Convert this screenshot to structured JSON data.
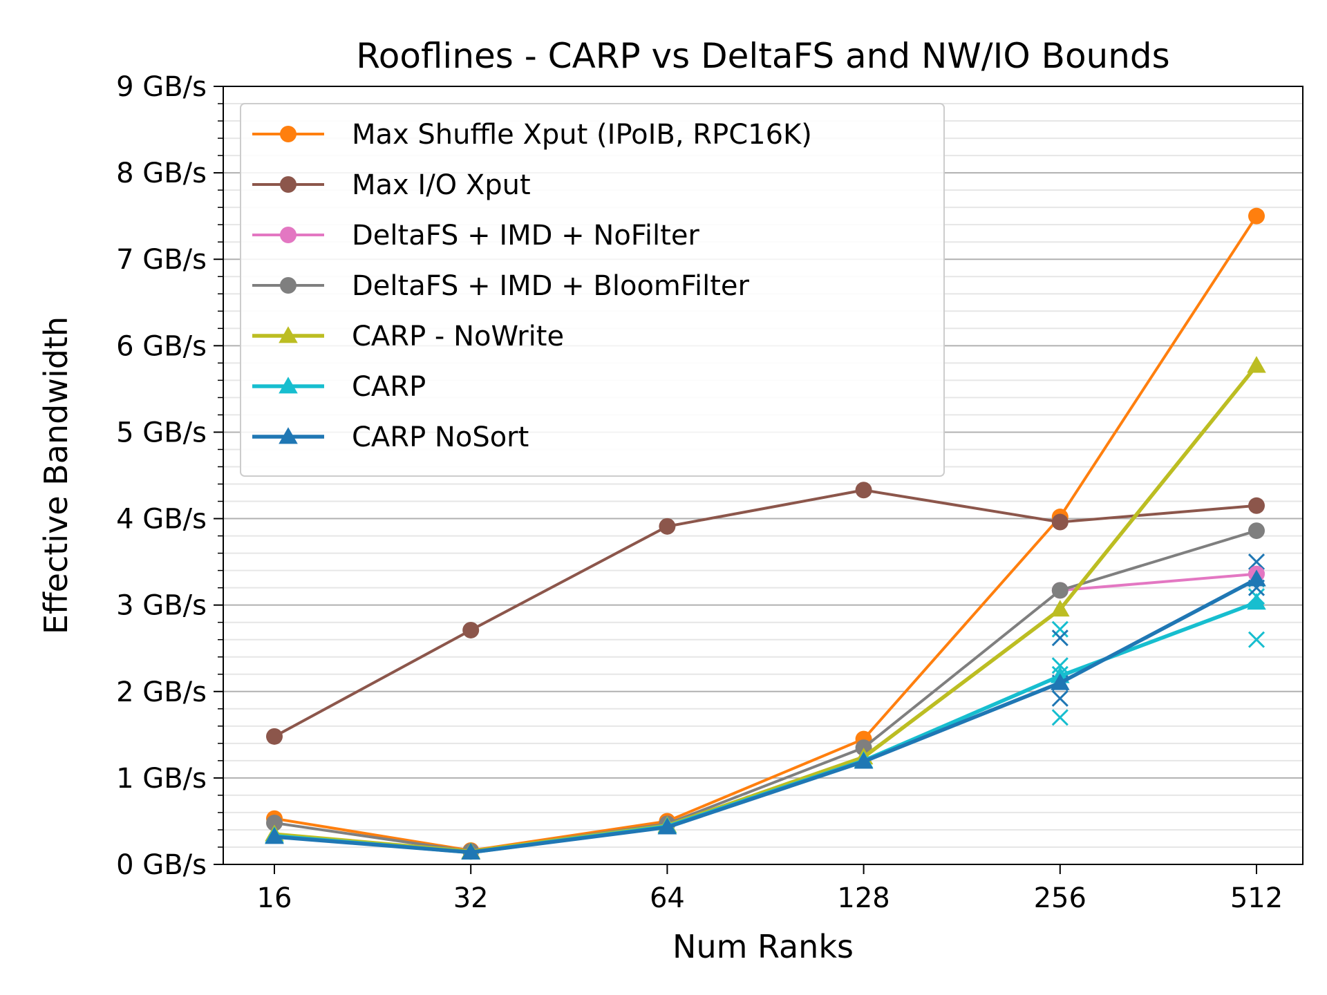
{
  "chart_data": {
    "type": "line",
    "title": "Rooflines - CARP vs DeltaFS and NW/IO Bounds",
    "xlabel": "Num Ranks",
    "ylabel": "Effective Bandwidth",
    "x_scale": "log2",
    "categories": [
      "16",
      "32",
      "64",
      "128",
      "256",
      "512"
    ],
    "y_unit": "GB/s",
    "ylim": [
      0,
      9
    ],
    "yticks": [
      0,
      1,
      2,
      3,
      4,
      5,
      6,
      7,
      8,
      9
    ],
    "ytick_labels": [
      "0 GB/s",
      "1 GB/s",
      "2 GB/s",
      "3 GB/s",
      "4 GB/s",
      "5 GB/s",
      "6 GB/s",
      "7 GB/s",
      "8 GB/s",
      "9 GB/s"
    ],
    "grid": "horizontal, major and minor",
    "legend_position": "upper-left",
    "series": [
      {
        "name": "Max Shuffle Xput (IPoIB, RPC16K)",
        "color": "#ff7f0e",
        "marker": "circle",
        "values": [
          0.53,
          0.16,
          0.5,
          1.45,
          4.02,
          7.5
        ]
      },
      {
        "name": "Max I/O Xput",
        "color": "#8c564b",
        "marker": "circle",
        "values": [
          1.48,
          2.71,
          3.91,
          4.33,
          3.96,
          4.15
        ]
      },
      {
        "name": "DeltaFS + IMD + NoFilter",
        "color": "#e377c2",
        "marker": "circle",
        "values": [
          null,
          null,
          null,
          null,
          3.17,
          3.36
        ]
      },
      {
        "name": "DeltaFS + IMD + BloomFilter",
        "color": "#7f7f7f",
        "marker": "circle",
        "values": [
          0.48,
          0.15,
          0.47,
          1.35,
          3.17,
          3.86
        ]
      },
      {
        "name": "CARP - NoWrite",
        "color": "#bcbd22",
        "marker": "triangle",
        "values": [
          0.35,
          0.15,
          0.45,
          1.24,
          2.95,
          5.77
        ]
      },
      {
        "name": "CARP",
        "color": "#17becf",
        "marker": "triangle",
        "values": [
          0.33,
          0.14,
          0.44,
          1.2,
          2.18,
          3.03
        ]
      },
      {
        "name": "CARP NoSort",
        "color": "#1f77b4",
        "marker": "triangle",
        "values": [
          0.32,
          0.14,
          0.43,
          1.19,
          2.1,
          3.3
        ]
      }
    ],
    "scatter_points": [
      {
        "name": "CARP",
        "color": "#17becf",
        "marker": "x",
        "points": [
          [
            4,
            2.72
          ],
          [
            4,
            2.3
          ],
          [
            4,
            2.2
          ],
          [
            4,
            1.7
          ],
          [
            5,
            3.3
          ],
          [
            5,
            3.1
          ],
          [
            5,
            2.6
          ]
        ]
      },
      {
        "name": "CARP NoSort",
        "color": "#1f77b4",
        "marker": "x",
        "points": [
          [
            4,
            2.62
          ],
          [
            4,
            2.1
          ],
          [
            4,
            1.92
          ],
          [
            5,
            3.5
          ],
          [
            5,
            3.2
          ]
        ]
      }
    ]
  }
}
